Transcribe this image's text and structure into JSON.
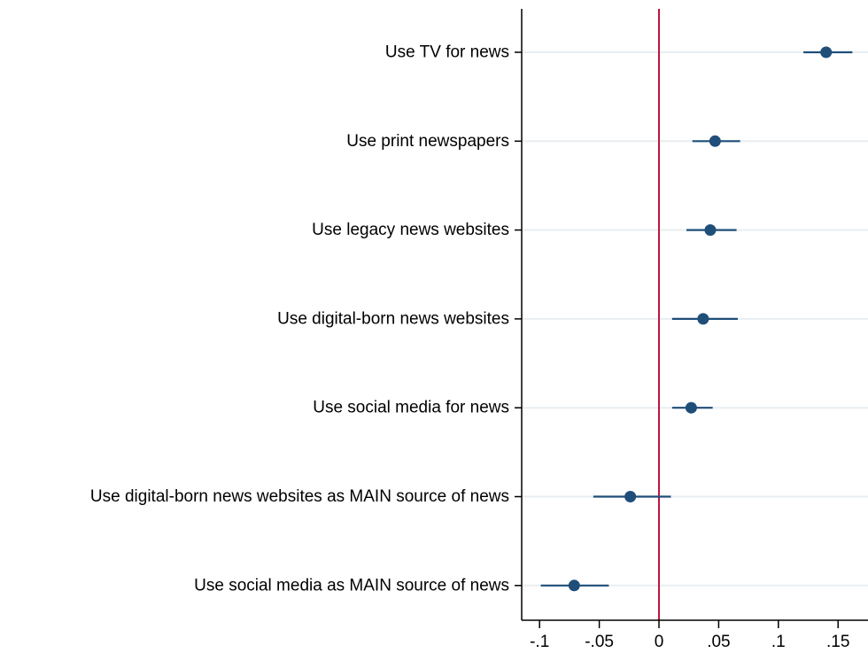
{
  "chart_data": {
    "type": "coefficient-plot",
    "orientation": "horizontal",
    "title": "",
    "xlabel": "",
    "ylabel": "",
    "categories": [
      "Use TV for news",
      "Use print newspapers",
      "Use legacy news websites",
      "Use digital-born news websites",
      "Use social media for news",
      "Use digital-born news websites as MAIN source of news",
      "Use social media as MAIN source of news"
    ],
    "estimates": [
      0.14,
      0.047,
      0.043,
      0.037,
      0.027,
      -0.024,
      -0.071
    ],
    "ci_low": [
      0.121,
      0.028,
      0.023,
      0.011,
      0.011,
      -0.055,
      -0.099
    ],
    "ci_high": [
      0.162,
      0.068,
      0.065,
      0.066,
      0.045,
      0.01,
      -0.042
    ],
    "xlim": [
      -0.105,
      0.165
    ],
    "xticks": [
      -0.1,
      -0.05,
      0,
      0.05,
      0.1,
      0.15
    ],
    "xtick_labels": [
      "-.1",
      "-.05",
      "0",
      ".05",
      ".1",
      ".15"
    ],
    "reference_line": 0,
    "grid": "horizontal"
  },
  "colors": {
    "marker": "#1f4e79",
    "ci": "#1f4e79",
    "reference_line": "#c0143c",
    "grid": "#e9eef2",
    "axis": "#000000"
  }
}
